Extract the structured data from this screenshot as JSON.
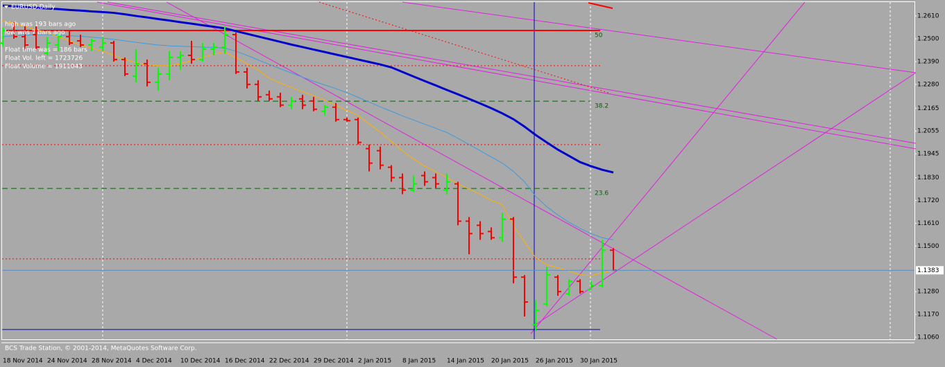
{
  "chart_data": {
    "type": "ohlc",
    "title": "EURUSD,Daily",
    "info_lines": [
      "high was   193  bars ago",
      "low was   7 bars ago",
      "Float time was  =     186 bars",
      "Float Vol. left   =     1723726",
      "Float Volume  =     1911043"
    ],
    "footer": "BCS Trade Station, © 2001-2014, MetaQuotes Software Corp.",
    "categories": [
      "18 Nov 2014",
      null,
      null,
      null,
      "24 Nov 2014",
      null,
      null,
      null,
      "28 Nov 2014",
      null,
      null,
      null,
      "4 Dec 2014",
      null,
      null,
      null,
      "10 Dec 2014",
      null,
      null,
      null,
      "16 Dec 2014",
      null,
      null,
      null,
      "22 Dec 2014",
      null,
      null,
      null,
      "29 Dec 2014",
      null,
      null,
      null,
      "2 Jan 2015",
      null,
      null,
      null,
      "8 Jan 2015",
      null,
      null,
      null,
      "14 Jan 2015",
      null,
      null,
      null,
      "20 Jan 2015",
      null,
      null,
      null,
      "26 Jan 2015",
      null,
      null,
      null,
      "30 Jan 2015",
      null,
      null,
      null
    ],
    "ohlc": {
      "up_color": "#00ff00",
      "down_color": "#ff0000",
      "open": [
        1.248,
        1.254,
        1.251,
        1.252,
        1.243,
        1.247,
        1.251,
        1.249,
        1.247,
        1.246,
        1.248,
        1.24,
        1.232,
        1.238,
        1.229,
        1.233,
        1.241,
        1.242,
        1.24,
        1.245,
        1.246,
        1.252,
        1.234,
        1.228,
        1.223,
        1.222,
        1.218,
        1.221,
        1.22,
        1.215,
        1.217,
        1.211,
        1.211,
        1.197,
        1.196,
        1.188,
        1.183,
        1.177,
        1.184,
        1.183,
        1.177,
        1.18,
        1.162,
        1.16,
        1.157,
        1.154,
        1.163,
        1.135,
        1.112,
        1.122,
        1.135,
        1.127,
        1.133,
        1.129,
        1.131,
        1.148
      ],
      "high": [
        1.2555,
        1.258,
        1.256,
        1.256,
        1.251,
        1.253,
        1.254,
        1.252,
        1.25,
        1.251,
        1.249,
        1.241,
        1.245,
        1.24,
        1.236,
        1.244,
        1.244,
        1.249,
        1.248,
        1.248,
        1.256,
        1.253,
        1.236,
        1.23,
        1.225,
        1.224,
        1.222,
        1.223,
        1.222,
        1.218,
        1.219,
        1.212,
        1.212,
        1.199,
        1.198,
        1.189,
        1.185,
        1.184,
        1.186,
        1.185,
        1.185,
        1.181,
        1.164,
        1.162,
        1.159,
        1.166,
        1.164,
        1.136,
        1.124,
        1.14,
        1.136,
        1.134,
        1.134,
        1.133,
        1.153,
        1.149
      ],
      "low": [
        1.246,
        1.25,
        1.245,
        1.245,
        1.242,
        1.244,
        1.247,
        1.246,
        1.244,
        1.244,
        1.239,
        1.232,
        1.229,
        1.227,
        1.225,
        1.23,
        1.235,
        1.238,
        1.239,
        1.242,
        1.243,
        1.233,
        1.226,
        1.22,
        1.22,
        1.217,
        1.216,
        1.216,
        1.215,
        1.213,
        1.21,
        1.21,
        1.199,
        1.186,
        1.187,
        1.181,
        1.175,
        1.176,
        1.179,
        1.178,
        1.175,
        1.16,
        1.146,
        1.153,
        1.153,
        1.152,
        1.132,
        1.116,
        1.109,
        1.121,
        1.126,
        1.126,
        1.127,
        1.129,
        1.13,
        1.138
      ],
      "close": [
        1.254,
        1.251,
        1.247,
        1.246,
        1.248,
        1.251,
        1.248,
        1.247,
        1.249,
        1.248,
        1.24,
        1.233,
        1.238,
        1.229,
        1.233,
        1.241,
        1.242,
        1.24,
        1.245,
        1.246,
        1.252,
        1.234,
        1.228,
        1.222,
        1.221,
        1.218,
        1.22,
        1.218,
        1.216,
        1.217,
        1.211,
        1.2105,
        1.2,
        1.19,
        1.189,
        1.183,
        1.177,
        1.18,
        1.181,
        1.18,
        1.181,
        1.162,
        1.156,
        1.156,
        1.154,
        1.163,
        1.135,
        1.123,
        1.119,
        1.136,
        1.128,
        1.133,
        1.128,
        1.131,
        1.148,
        1.1383
      ]
    },
    "series": [
      {
        "color": "#0000cd",
        "line_width": 3,
        "values": [
          1.266,
          1.2657,
          1.2653,
          1.265,
          1.2646,
          1.2643,
          1.2639,
          1.2636,
          1.2632,
          1.2629,
          1.2625,
          1.2618,
          1.261,
          1.2603,
          1.2595,
          1.2588,
          1.258,
          1.2573,
          1.2565,
          1.2558,
          1.255,
          1.2537,
          1.2524,
          1.2511,
          1.2498,
          1.2485,
          1.2472,
          1.246,
          1.2448,
          1.2436,
          1.2424,
          1.2412,
          1.24,
          1.2388,
          1.2376,
          1.2362,
          1.234,
          1.2318,
          1.2296,
          1.2275,
          1.2253,
          1.2232,
          1.221,
          1.2188,
          1.2165,
          1.214,
          1.2112,
          1.2076,
          1.2036,
          1.2,
          1.1965,
          1.1935,
          1.1905,
          1.1885,
          1.1868,
          1.1855
        ]
      },
      {
        "color": "#3d9be0",
        "line_width": 1,
        "values": [
          1.251,
          1.2515,
          1.2518,
          1.252,
          1.252,
          1.2518,
          1.2515,
          1.2512,
          1.2508,
          1.2503,
          1.2497,
          1.249,
          1.2483,
          1.2476,
          1.247,
          1.2466,
          1.2464,
          1.2462,
          1.246,
          1.2458,
          1.2455,
          1.244,
          1.242,
          1.2398,
          1.2376,
          1.2355,
          1.2335,
          1.2315,
          1.2295,
          1.2277,
          1.226,
          1.224,
          1.2218,
          1.2195,
          1.2172,
          1.215,
          1.2128,
          1.2108,
          1.2088,
          1.2068,
          1.2048,
          1.202,
          1.199,
          1.196,
          1.193,
          1.19,
          1.186,
          1.181,
          1.174,
          1.169,
          1.165,
          1.1615,
          1.1585,
          1.156,
          1.154,
          1.153
        ]
      },
      {
        "color": "#ffb000",
        "line_width": 1,
        "values": [
          1.2585,
          1.2575,
          1.256,
          1.2545,
          1.253,
          1.251,
          1.249,
          1.247,
          1.2455,
          1.244,
          1.242,
          1.24,
          1.2385,
          1.2375,
          1.237,
          1.237,
          1.238,
          1.2395,
          1.241,
          1.2425,
          1.2436,
          1.241,
          1.238,
          1.235,
          1.231,
          1.2286,
          1.2265,
          1.2245,
          1.2225,
          1.2205,
          1.218,
          1.2155,
          1.213,
          1.209,
          1.205,
          1.2005,
          1.196,
          1.192,
          1.1885,
          1.186,
          1.183,
          1.18,
          1.1775,
          1.175,
          1.172,
          1.17,
          1.16,
          1.152,
          1.1444,
          1.141,
          1.1395,
          1.138,
          1.1362,
          1.1357,
          1.137,
          1.1384
        ]
      }
    ],
    "hlines": [
      {
        "value": 1.254,
        "color": "#ff0000",
        "style": "solid"
      },
      {
        "value": 1.237,
        "color": "#ff0000",
        "style": "dotted"
      },
      {
        "value": 1.1989,
        "color": "#ff0000",
        "style": "dotted"
      },
      {
        "value": 1.1438,
        "color": "#ff0000",
        "style": "dotted"
      },
      {
        "value": 1.1097,
        "color": "#0000cd",
        "style": "solid"
      }
    ],
    "levels": [
      {
        "label": "50",
        "value": 1.254,
        "color": "#ff0000",
        "style": "solid"
      },
      {
        "label": "38.2",
        "value": 1.2199,
        "color": "#006400",
        "style": "dashed"
      },
      {
        "label": "23.6",
        "value": 1.1778,
        "color": "#006400",
        "style": "dashed"
      }
    ],
    "current_price": 1.1383,
    "ylim": [
      1.105,
      1.2677
    ],
    "yticks": [
      {
        "value": 1.261,
        "label": "1.2610"
      },
      {
        "value": 1.25,
        "label": "1.2500"
      },
      {
        "value": 1.239,
        "label": "1.2390"
      },
      {
        "value": 1.228,
        "label": "1.2280"
      },
      1.2165,
      1.2055,
      1.1945,
      {
        "value": 1.183,
        "label": "1.1830"
      },
      {
        "value": 1.172,
        "label": "1.1720"
      },
      {
        "value": 1.161,
        "label": "1.1610"
      },
      {
        "value": 1.15,
        "label": "1.1500"
      },
      {
        "value": 1.128,
        "label": "1.1280"
      },
      {
        "value": 1.117,
        "label": "1.1170"
      },
      {
        "value": 1.106,
        "label": "1.1060"
      }
    ]
  }
}
